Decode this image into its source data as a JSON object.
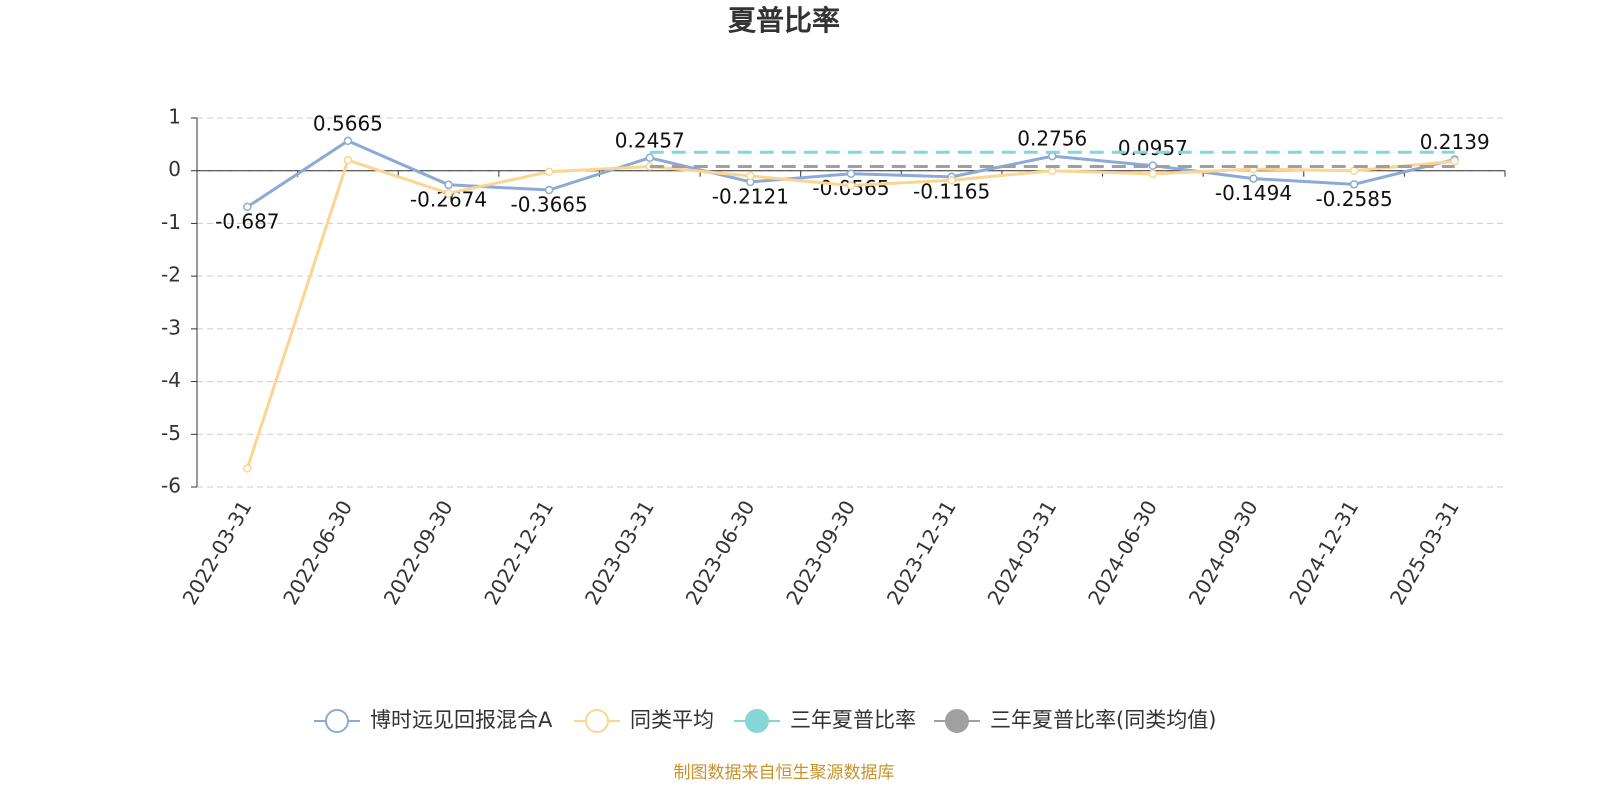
{
  "chart_data": {
    "type": "line",
    "title": "夏普比率",
    "categories": [
      "2022-03-31",
      "2022-06-30",
      "2022-09-30",
      "2022-12-31",
      "2023-03-31",
      "2023-06-30",
      "2023-09-30",
      "2023-12-31",
      "2024-03-31",
      "2024-06-30",
      "2024-09-30",
      "2024-12-31",
      "2025-03-31"
    ],
    "series": [
      {
        "name": "博时远见回报混合A",
        "color": "#8caad8",
        "values": [
          -0.687,
          0.5665,
          -0.2674,
          -0.3665,
          0.2457,
          -0.2121,
          -0.0565,
          -0.1165,
          0.2756,
          0.0957,
          -0.1494,
          -0.2585,
          0.2139
        ],
        "data_labels": true
      },
      {
        "name": "同类平均",
        "color": "#fcd590",
        "values": [
          -5.65,
          0.2,
          -0.43,
          -0.02,
          0.08,
          -0.1,
          -0.28,
          -0.18,
          0.0,
          -0.06,
          0.03,
          0.0,
          0.18
        ]
      },
      {
        "name": "三年夏普比率",
        "color": "#86d6d8",
        "line_style": "dashed",
        "values": [
          null,
          null,
          null,
          null,
          0.35,
          0.35,
          0.35,
          0.35,
          0.35,
          0.35,
          0.35,
          0.35,
          0.35
        ]
      },
      {
        "name": "三年夏普比率(同类均值)",
        "color": "#a0a0a0",
        "line_style": "dashed",
        "values": [
          null,
          null,
          null,
          null,
          0.08,
          0.08,
          0.08,
          0.08,
          0.08,
          0.08,
          0.08,
          0.08,
          0.08
        ]
      }
    ],
    "ylim": [
      -6,
      1
    ],
    "yticks": [
      -6,
      -5,
      -4,
      -3,
      -2,
      -1,
      0,
      1
    ],
    "grid": true,
    "source": "制图数据来自恒生聚源数据库"
  }
}
